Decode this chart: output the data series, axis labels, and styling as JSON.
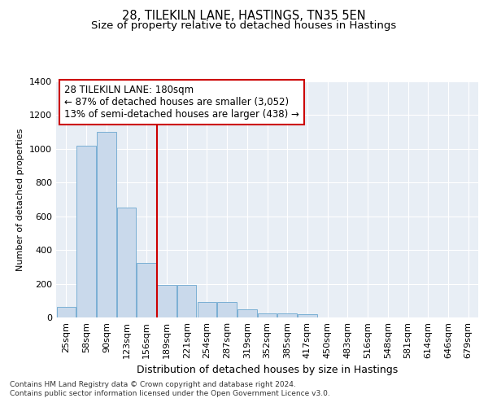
{
  "title": "28, TILEKILN LANE, HASTINGS, TN35 5EN",
  "subtitle": "Size of property relative to detached houses in Hastings",
  "xlabel": "Distribution of detached houses by size in Hastings",
  "ylabel": "Number of detached properties",
  "categories": [
    "25sqm",
    "58sqm",
    "90sqm",
    "123sqm",
    "156sqm",
    "189sqm",
    "221sqm",
    "254sqm",
    "287sqm",
    "319sqm",
    "352sqm",
    "385sqm",
    "417sqm",
    "450sqm",
    "483sqm",
    "516sqm",
    "548sqm",
    "581sqm",
    "614sqm",
    "646sqm",
    "679sqm"
  ],
  "values": [
    65,
    1020,
    1100,
    650,
    325,
    195,
    195,
    90,
    90,
    50,
    25,
    25,
    20,
    0,
    0,
    0,
    0,
    0,
    0,
    0,
    0
  ],
  "bar_color": "#c9d9eb",
  "bar_edge_color": "#7aafd4",
  "vline_color": "#cc0000",
  "annotation_text": "28 TILEKILN LANE: 180sqm\n← 87% of detached houses are smaller (3,052)\n13% of semi-detached houses are larger (438) →",
  "annotation_box_color": "#ffffff",
  "annotation_box_edge": "#cc0000",
  "ylim": [
    0,
    1400
  ],
  "yticks": [
    0,
    200,
    400,
    600,
    800,
    1000,
    1200,
    1400
  ],
  "bg_color": "#e8eef5",
  "footer_text": "Contains HM Land Registry data © Crown copyright and database right 2024.\nContains public sector information licensed under the Open Government Licence v3.0.",
  "title_fontsize": 10.5,
  "subtitle_fontsize": 9.5,
  "xlabel_fontsize": 9,
  "ylabel_fontsize": 8,
  "tick_fontsize": 8,
  "annotation_fontsize": 8.5
}
